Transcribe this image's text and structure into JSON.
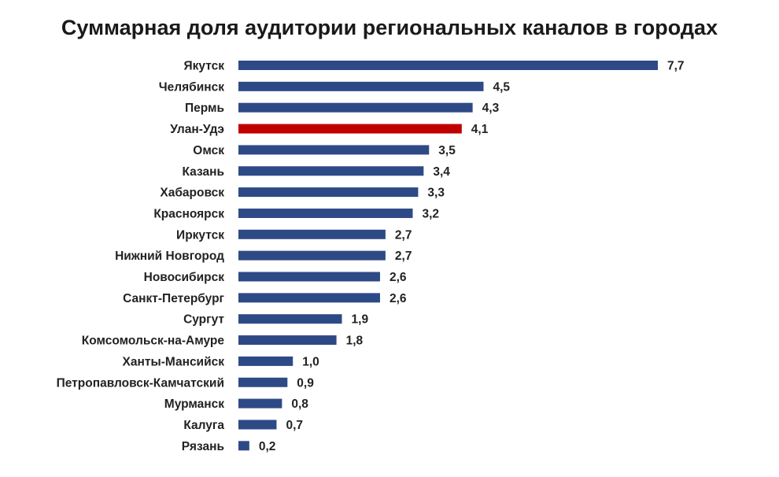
{
  "chart_data": {
    "type": "bar",
    "orientation": "horizontal",
    "title": "Суммарная доля аудитории региональных каналов в городах",
    "xlabel": "",
    "ylabel": "",
    "grid": false,
    "xlim": [
      0,
      7.7
    ],
    "categories": [
      "Якутск",
      "Челябинск",
      "Пермь",
      "Улан-Удэ",
      "Омск",
      "Казань",
      "Хабаровск",
      "Красноярск",
      "Иркутск",
      "Нижний Новгород",
      "Новосибирск",
      "Санкт-Петербург",
      "Сургут",
      "Комсомольск-на-Амуре",
      "Ханты-Мансийск",
      "Петропавловск-Камчатский",
      "Мурманск",
      "Калуга",
      "Рязань"
    ],
    "values": [
      7.7,
      4.5,
      4.3,
      4.1,
      3.5,
      3.4,
      3.3,
      3.2,
      2.7,
      2.7,
      2.6,
      2.6,
      1.9,
      1.8,
      1.0,
      0.9,
      0.8,
      0.7,
      0.2
    ],
    "value_labels": [
      "7,7",
      "4,5",
      "4,3",
      "4,1",
      "3,5",
      "3,4",
      "3,3",
      "3,2",
      "2,7",
      "2,7",
      "2,6",
      "2,6",
      "1,9",
      "1,8",
      "1,0",
      "0,9",
      "0,8",
      "0,7",
      "0,2"
    ],
    "highlight_category": "Улан-Удэ",
    "colors": {
      "bar": "#2e4a86",
      "highlight_bar": "#c00000",
      "highlight_label": "#c00000",
      "text": "#222222"
    }
  }
}
